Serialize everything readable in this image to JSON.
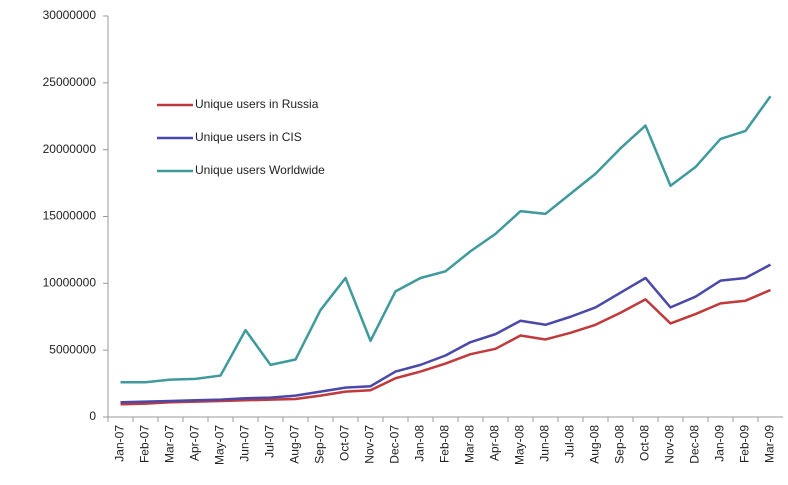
{
  "chart_data": {
    "type": "line",
    "categories": [
      "Jan-07",
      "Feb-07",
      "Mar-07",
      "Apr-07",
      "May-07",
      "Jun-07",
      "Jul-07",
      "Aug-07",
      "Sep-07",
      "Oct-07",
      "Nov-07",
      "Dec-07",
      "Jan-08",
      "Feb-08",
      "Mar-08",
      "Apr-08",
      "May-08",
      "Jun-08",
      "Jul-08",
      "Aug-08",
      "Sep-08",
      "Oct-08",
      "Nov-08",
      "Dec-08",
      "Jan-09",
      "Feb-09",
      "Mar-09"
    ],
    "series": [
      {
        "name": "Unique users in Russia",
        "color": "#c0393b",
        "values": [
          950000,
          1000000,
          1100000,
          1150000,
          1200000,
          1250000,
          1300000,
          1350000,
          1600000,
          1900000,
          2000000,
          2900000,
          3400000,
          4000000,
          4700000,
          5100000,
          6100000,
          5800000,
          6300000,
          6900000,
          7800000,
          8800000,
          7000000,
          7700000,
          8500000,
          8700000,
          9500000
        ]
      },
      {
        "name": "Unique users in CIS",
        "color": "#4a48a8",
        "values": [
          1100000,
          1150000,
          1200000,
          1250000,
          1300000,
          1400000,
          1450000,
          1600000,
          1900000,
          2200000,
          2300000,
          3400000,
          3900000,
          4600000,
          5600000,
          6200000,
          7200000,
          6900000,
          7500000,
          8200000,
          9300000,
          10400000,
          8200000,
          9000000,
          10200000,
          10400000,
          11400000
        ]
      },
      {
        "name": "Unique users Worldwide",
        "color": "#3f9a9c",
        "values": [
          2600000,
          2600000,
          2800000,
          2850000,
          3100000,
          6500000,
          3900000,
          4300000,
          8000000,
          10400000,
          5700000,
          9400000,
          10400000,
          10900000,
          12400000,
          13700000,
          15400000,
          15200000,
          16700000,
          18200000,
          20100000,
          21800000,
          17300000,
          18700000,
          20800000,
          21400000,
          24000000
        ]
      }
    ],
    "ylim": [
      0,
      30000000
    ],
    "yticks": [
      0,
      5000000,
      10000000,
      15000000,
      20000000,
      25000000,
      30000000
    ],
    "grid": false,
    "legend": "upper left"
  }
}
